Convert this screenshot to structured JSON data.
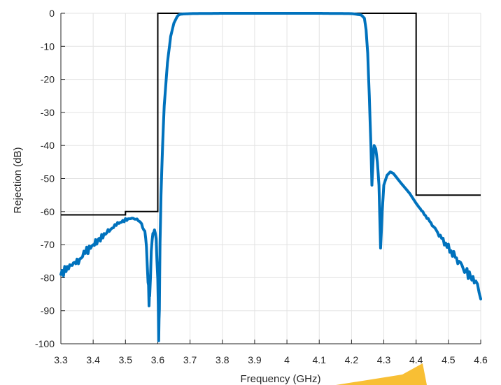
{
  "chart_data": {
    "type": "line",
    "title": "",
    "xlabel": "Frequency (GHz)",
    "ylabel": "Rejection (dB)",
    "xlim": [
      3.3,
      4.6
    ],
    "ylim": [
      -100,
      0
    ],
    "grid": true,
    "x_ticks": [
      3.3,
      3.4,
      3.5,
      3.6,
      3.7,
      3.8,
      3.9,
      4.0,
      4.1,
      4.2,
      4.3,
      4.4,
      4.5,
      4.6
    ],
    "x_tick_labels": [
      "3.3",
      "3.4",
      "3.5",
      "3.6",
      "3.7",
      "3.8",
      "3.9",
      "4",
      "4.1",
      "4.2",
      "4.3",
      "4.4",
      "4.5",
      "4.6"
    ],
    "y_ticks": [
      0,
      -10,
      -20,
      -30,
      -40,
      -50,
      -60,
      -70,
      -80,
      -90,
      -100
    ],
    "y_tick_labels": [
      "0",
      "-10",
      "-20",
      "-30",
      "-40",
      "-50",
      "-60",
      "-70",
      "-80",
      "-90",
      "-100"
    ],
    "colors": {
      "response": "#0072bd",
      "mask": "#000000",
      "accent": "#f7b81e"
    },
    "series": [
      {
        "x": [
          3.3,
          3.32,
          3.35,
          3.38,
          3.4,
          3.43,
          3.45,
          3.48,
          3.5,
          3.52,
          3.54,
          3.55,
          3.56,
          3.565,
          3.57,
          3.573,
          3.575,
          3.58,
          3.585,
          3.59,
          3.595,
          3.6,
          3.603,
          3.605,
          3.607,
          3.61,
          3.615,
          3.62,
          3.63,
          3.64,
          3.65,
          3.66,
          3.665,
          3.67,
          3.68,
          3.7,
          3.8,
          3.9,
          4.0,
          4.1,
          4.2,
          4.23,
          4.24,
          4.245,
          4.25,
          4.255,
          4.26,
          4.263,
          4.265,
          4.268,
          4.27,
          4.275,
          4.28,
          4.285,
          4.29,
          4.295,
          4.3,
          4.31,
          4.32,
          4.33,
          4.35,
          4.38,
          4.4,
          4.45,
          4.5,
          4.55,
          4.58,
          4.59,
          4.6
        ],
        "y": [
          -79,
          -77,
          -75,
          -72,
          -70,
          -67.5,
          -65.5,
          -63.5,
          -62.5,
          -62,
          -62.5,
          -63.5,
          -66,
          -71,
          -80,
          -87.5,
          -85,
          -72,
          -67,
          -66,
          -68,
          -80,
          -98,
          -88,
          -70,
          -55,
          -40,
          -28,
          -15,
          -7,
          -3,
          -1,
          -0.5,
          -0.3,
          -0.2,
          -0.1,
          0,
          0,
          0,
          0,
          -0.1,
          -0.5,
          -1.5,
          -5,
          -12,
          -25,
          -40,
          -52,
          -48,
          -42,
          -40,
          -41,
          -45,
          -52,
          -72,
          -60,
          -52,
          -49,
          -48,
          -48.5,
          -51,
          -54.5,
          -57.5,
          -64,
          -71,
          -77.5,
          -81,
          -83,
          -86
        ],
        "irregular": true
      },
      {
        "x": [
          3.3,
          3.5,
          3.5,
          3.6,
          3.6,
          4.4,
          4.4,
          4.6
        ],
        "y": [
          -61,
          -61,
          -60,
          -60,
          0,
          0,
          -55,
          -55
        ]
      }
    ]
  }
}
